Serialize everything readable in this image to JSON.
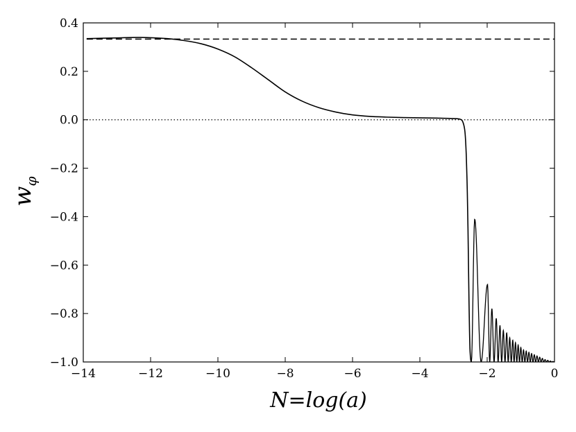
{
  "chart_data": {
    "type": "line",
    "title": "",
    "xlabel": "N=log(a)",
    "ylabel": "w_φ",
    "ylabel_main": "w",
    "ylabel_sub": "φ",
    "xlim": [
      -14,
      0
    ],
    "ylim": [
      -1.0,
      0.4
    ],
    "x_ticks": [
      -14,
      -12,
      -10,
      -8,
      -6,
      -4,
      -2,
      0
    ],
    "x_tick_labels": [
      "−14",
      "−12",
      "−10",
      "−8",
      "−6",
      "−4",
      "−2",
      "0"
    ],
    "y_ticks": [
      -1.0,
      -0.8,
      -0.6,
      -0.4,
      -0.2,
      0.0,
      0.2,
      0.4
    ],
    "y_tick_labels": [
      "−1.0",
      "−0.8",
      "−0.6",
      "−0.4",
      "−0.2",
      "0.0",
      "0.2",
      "0.4"
    ],
    "grid": false,
    "legend": "none",
    "colors": {
      "line": "#000000",
      "background": "#ffffff"
    },
    "reference_lines": [
      {
        "y": 0.333,
        "style": "dashed"
      },
      {
        "y": 0.0,
        "style": "dotted"
      }
    ],
    "series": [
      {
        "x": [
          -13.9,
          -13.0,
          -12.3,
          -11.5,
          -11.0,
          -10.5,
          -10.0,
          -9.5,
          -9.0,
          -8.5,
          -8.0,
          -7.5,
          -7.0,
          -6.5,
          -6.0,
          -5.5,
          -5.0,
          -4.5,
          -4.0,
          -3.5,
          -3.0,
          -2.8,
          -2.72,
          -2.66,
          -2.62,
          -2.59,
          -2.57,
          -2.555,
          -2.54,
          -2.525,
          -2.51,
          -2.49,
          -2.47
        ],
        "y": [
          0.335,
          0.338,
          0.34,
          0.335,
          0.327,
          0.314,
          0.292,
          0.26,
          0.215,
          0.165,
          0.115,
          0.077,
          0.05,
          0.032,
          0.02,
          0.014,
          0.011,
          0.009,
          0.008,
          0.007,
          0.005,
          0.002,
          -0.01,
          -0.05,
          -0.15,
          -0.3,
          -0.45,
          -0.6,
          -0.75,
          -0.87,
          -0.95,
          -0.99,
          -1.0
        ]
      }
    ],
    "oscillation": {
      "start": -2.47,
      "end": 0.0,
      "peaks": [
        {
          "x": -2.37,
          "y": -0.41
        },
        {
          "x": -1.99,
          "y": -0.68
        },
        {
          "x": -1.86,
          "y": -0.78
        },
        {
          "x": -1.73,
          "y": -0.82
        },
        {
          "x": -1.62,
          "y": -0.85
        },
        {
          "x": -1.52,
          "y": -0.87
        },
        {
          "x": -1.42,
          "y": -0.88
        },
        {
          "x": -1.33,
          "y": -0.9
        },
        {
          "x": -1.24,
          "y": -0.91
        },
        {
          "x": -1.16,
          "y": -0.92
        },
        {
          "x": -1.08,
          "y": -0.93
        },
        {
          "x": -1.0,
          "y": -0.94
        },
        {
          "x": -0.92,
          "y": -0.95
        },
        {
          "x": -0.84,
          "y": -0.955
        },
        {
          "x": -0.76,
          "y": -0.96
        },
        {
          "x": -0.68,
          "y": -0.965
        },
        {
          "x": -0.6,
          "y": -0.97
        },
        {
          "x": -0.52,
          "y": -0.975
        },
        {
          "x": -0.44,
          "y": -0.98
        },
        {
          "x": -0.36,
          "y": -0.985
        },
        {
          "x": -0.28,
          "y": -0.99
        },
        {
          "x": -0.2,
          "y": -0.993
        },
        {
          "x": -0.12,
          "y": -0.996
        },
        {
          "x": -0.05,
          "y": -0.998
        }
      ]
    }
  }
}
